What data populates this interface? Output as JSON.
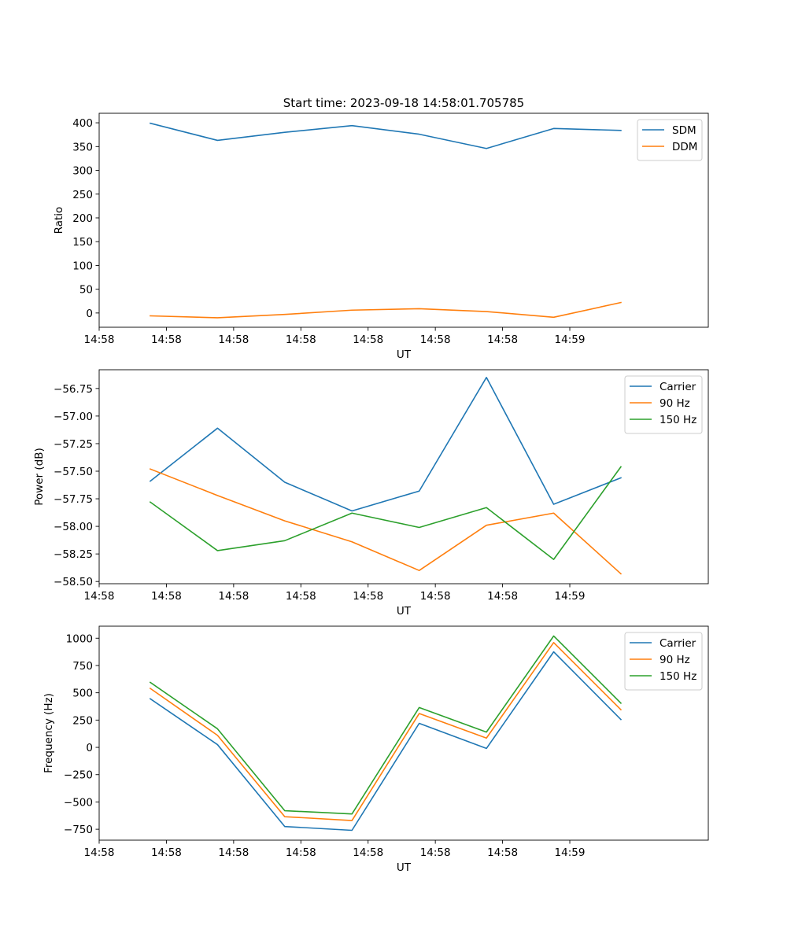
{
  "figure": {
    "title": "Start time: 2023-09-18 14:58:01.705785"
  },
  "chart_data": [
    {
      "type": "line",
      "xlabel": "UT",
      "ylabel": "Ratio",
      "x_tick_labels": [
        "14:58",
        "14:58",
        "14:58",
        "14:58",
        "14:58",
        "14:58",
        "14:58",
        "14:59"
      ],
      "xlim": [
        -0.76,
        8.3
      ],
      "x": [
        0,
        1,
        2,
        3,
        4,
        5,
        6,
        7
      ],
      "ylim": [
        -30,
        420
      ],
      "y_ticks": [
        0,
        50,
        100,
        150,
        200,
        250,
        300,
        350,
        400
      ],
      "y_tick_labels": [
        "0",
        "50",
        "100",
        "150",
        "200",
        "250",
        "300",
        "350",
        "400"
      ],
      "legend": "top-right",
      "series": [
        {
          "name": "SDM",
          "color": "#1f77b4",
          "values": [
            399,
            363,
            380,
            394,
            376,
            346,
            388,
            384
          ]
        },
        {
          "name": "DDM",
          "color": "#ff7f0e",
          "values": [
            -6,
            -10,
            -3,
            6,
            9,
            3,
            -9,
            22
          ]
        }
      ]
    },
    {
      "type": "line",
      "xlabel": "UT",
      "ylabel": "Power (dB)",
      "x_tick_labels": [
        "14:58",
        "14:58",
        "14:58",
        "14:58",
        "14:58",
        "14:58",
        "14:58",
        "14:59"
      ],
      "xlim": [
        -0.76,
        8.3
      ],
      "x": [
        0,
        1,
        2,
        3,
        4,
        5,
        6,
        7
      ],
      "ylim": [
        -58.52,
        -56.58
      ],
      "y_ticks": [
        -58.5,
        -58.25,
        -58.0,
        -57.75,
        -57.5,
        -57.25,
        -57.0,
        -56.75
      ],
      "y_tick_labels": [
        "−58.50",
        "−58.25",
        "−58.00",
        "−57.75",
        "−57.50",
        "−57.25",
        "−57.00",
        "−56.75"
      ],
      "legend": "top-right",
      "series": [
        {
          "name": "Carrier",
          "color": "#1f77b4",
          "values": [
            -57.59,
            -57.11,
            -57.6,
            -57.86,
            -57.68,
            -56.65,
            -57.8,
            -57.56
          ]
        },
        {
          "name": "90 Hz",
          "color": "#ff7f0e",
          "values": [
            -57.48,
            -57.72,
            -57.95,
            -58.14,
            -58.4,
            -57.99,
            -57.88,
            -58.43
          ]
        },
        {
          "name": "150 Hz",
          "color": "#2ca02c",
          "values": [
            -57.78,
            -58.22,
            -58.13,
            -57.88,
            -58.01,
            -57.83,
            -58.3,
            -57.46
          ]
        }
      ]
    },
    {
      "type": "line",
      "xlabel": "UT",
      "ylabel": "Frequency (Hz)",
      "x_tick_labels": [
        "14:58",
        "14:58",
        "14:58",
        "14:58",
        "14:58",
        "14:58",
        "14:58",
        "14:59"
      ],
      "xlim": [
        -0.76,
        8.3
      ],
      "x": [
        0,
        1,
        2,
        3,
        4,
        5,
        6,
        7
      ],
      "ylim": [
        -850,
        1110
      ],
      "y_ticks": [
        -750,
        -500,
        -250,
        0,
        250,
        500,
        750,
        1000
      ],
      "y_tick_labels": [
        "−750",
        "−500",
        "−250",
        "0",
        "250",
        "500",
        "750",
        "1000"
      ],
      "legend": "top-right",
      "series": [
        {
          "name": "Carrier",
          "color": "#1f77b4",
          "values": [
            445,
            25,
            -725,
            -760,
            220,
            -10,
            875,
            255
          ]
        },
        {
          "name": "90 Hz",
          "color": "#ff7f0e",
          "values": [
            540,
            110,
            -635,
            -670,
            310,
            85,
            960,
            345
          ]
        },
        {
          "name": "150 Hz",
          "color": "#2ca02c",
          "values": [
            595,
            170,
            -580,
            -610,
            365,
            140,
            1020,
            405
          ]
        }
      ]
    }
  ]
}
